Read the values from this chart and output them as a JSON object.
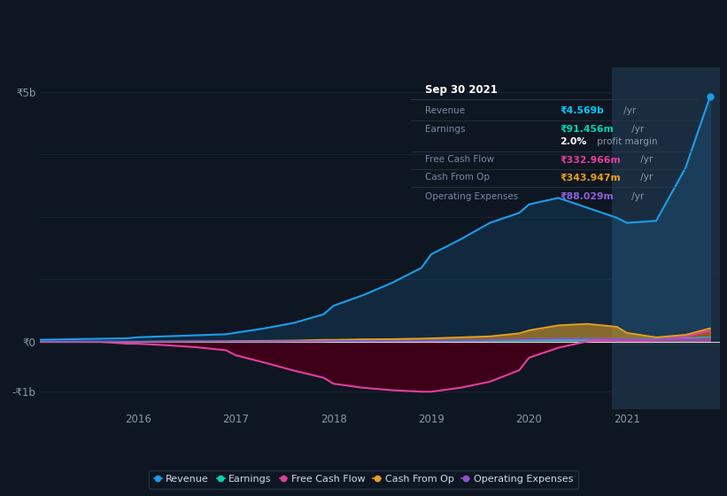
{
  "bg_color": "#0e1621",
  "plot_bg_color": "#0e1621",
  "grid_color": "#1a2a3a",
  "years": [
    2015.0,
    2015.3,
    2015.6,
    2015.9,
    2016.0,
    2016.3,
    2016.6,
    2016.9,
    2017.0,
    2017.3,
    2017.6,
    2017.9,
    2018.0,
    2018.3,
    2018.6,
    2018.9,
    2019.0,
    2019.3,
    2019.6,
    2019.9,
    2020.0,
    2020.3,
    2020.6,
    2020.9,
    2021.0,
    2021.3,
    2021.6,
    2021.85
  ],
  "revenue": [
    0.04,
    0.05,
    0.06,
    0.07,
    0.09,
    0.11,
    0.13,
    0.15,
    0.18,
    0.27,
    0.38,
    0.55,
    0.72,
    0.93,
    1.18,
    1.48,
    1.75,
    2.05,
    2.38,
    2.58,
    2.75,
    2.88,
    2.68,
    2.48,
    2.38,
    2.42,
    3.48,
    4.9
  ],
  "earnings": [
    0.005,
    0.005,
    0.005,
    0.005,
    0.005,
    0.005,
    0.005,
    0.005,
    0.005,
    0.005,
    0.008,
    0.01,
    0.012,
    0.015,
    0.015,
    0.015,
    0.02,
    0.02,
    0.02,
    0.025,
    0.03,
    0.03,
    0.03,
    0.03,
    0.04,
    0.05,
    0.07,
    0.09
  ],
  "free_cash_flow": [
    0.0,
    0.0,
    0.0,
    -0.04,
    -0.04,
    -0.07,
    -0.11,
    -0.17,
    -0.27,
    -0.42,
    -0.58,
    -0.72,
    -0.84,
    -0.92,
    -0.97,
    -1.0,
    -1.0,
    -0.92,
    -0.8,
    -0.57,
    -0.32,
    -0.12,
    0.01,
    0.04,
    0.02,
    0.03,
    0.1,
    0.22
  ],
  "cash_from_op": [
    0.0,
    0.0,
    0.0,
    0.0,
    0.0,
    0.005,
    0.008,
    0.01,
    0.015,
    0.02,
    0.025,
    0.04,
    0.04,
    0.05,
    0.055,
    0.065,
    0.07,
    0.09,
    0.11,
    0.17,
    0.23,
    0.33,
    0.36,
    0.3,
    0.18,
    0.09,
    0.14,
    0.27
  ],
  "operating_expenses": [
    0.0,
    0.0,
    0.0,
    0.0,
    0.0,
    0.0,
    0.008,
    0.008,
    0.008,
    0.008,
    0.01,
    0.01,
    0.015,
    0.015,
    0.018,
    0.018,
    0.025,
    0.028,
    0.035,
    0.045,
    0.055,
    0.065,
    0.065,
    0.055,
    0.045,
    0.045,
    0.055,
    0.075
  ],
  "xlim": [
    2015.0,
    2021.95
  ],
  "ylim": [
    -1.35,
    5.5
  ],
  "highlight_x_start": 2020.85,
  "highlight_x_end": 2021.95,
  "revenue_color": "#1e9be8",
  "earnings_color": "#00d4b4",
  "free_cash_flow_color": "#e040a0",
  "cash_from_op_color": "#e8a020",
  "operating_expenses_color": "#9050d0",
  "legend_labels": [
    "Revenue",
    "Earnings",
    "Free Cash Flow",
    "Cash From Op",
    "Operating Expenses"
  ],
  "legend_colors": [
    "#1e9be8",
    "#00d4b4",
    "#e040a0",
    "#e8a020",
    "#9050d0"
  ],
  "xtick_positions": [
    2016,
    2017,
    2018,
    2019,
    2020,
    2021
  ],
  "xtick_labels": [
    "2016",
    "2017",
    "2018",
    "2019",
    "2020",
    "2021"
  ]
}
